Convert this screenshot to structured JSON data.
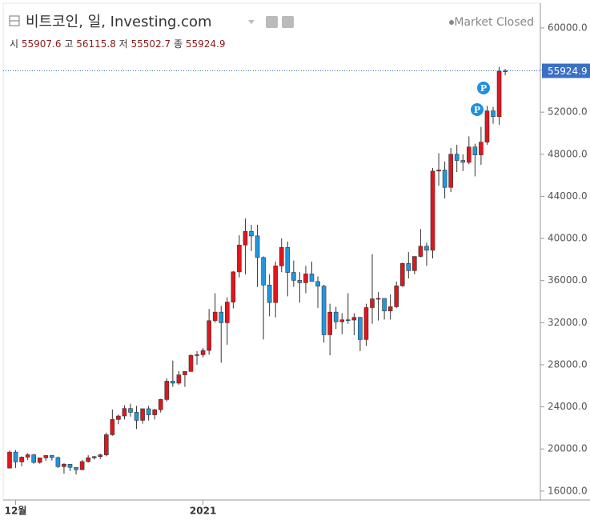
{
  "header": {
    "title": "비트코인, 일, Investing.com",
    "status": "Market Closed",
    "ohlc_labels": [
      "시",
      "고",
      "저",
      "종"
    ]
  },
  "chart_data": {
    "type": "candlestick",
    "categories": [
      null,
      "12월",
      null,
      null,
      null,
      null,
      null,
      null,
      null,
      null,
      null,
      null,
      null,
      null,
      null,
      null,
      null,
      null,
      null,
      null,
      null,
      null,
      null,
      null,
      null,
      null,
      null,
      null,
      null,
      null,
      null,
      null,
      "2021",
      null,
      null,
      null,
      null,
      null,
      null,
      null,
      null,
      null,
      null,
      null,
      null,
      null,
      null,
      null,
      null,
      null,
      null,
      null,
      null,
      null,
      null,
      null,
      null,
      null,
      null,
      null,
      null,
      null,
      null,
      null,
      null,
      null,
      null,
      null,
      null,
      null,
      null,
      null,
      null,
      null,
      null,
      null,
      null,
      null,
      null,
      null,
      null,
      null,
      null
    ],
    "open": [
      18180,
      19700,
      18770,
      19220,
      19445,
      18720,
      19155,
      19375,
      19180,
      18320,
      18550,
      18250,
      18030,
      18800,
      19160,
      19270,
      19440,
      21350,
      22800,
      23130,
      23840,
      23480,
      22720,
      23820,
      23240,
      23730,
      24700,
      26440,
      26250,
      27040,
      27360,
      28880,
      28950,
      29360,
      32190,
      33000,
      31990,
      33950,
      36820,
      39370,
      40670,
      40240,
      38190,
      35570,
      33910,
      37390,
      39150,
      36770,
      36020,
      35790,
      36630,
      35910,
      35470,
      30850,
      33000,
      32080,
      32270,
      32250,
      32500,
      30400,
      33430,
      34260,
      34300,
      33110,
      33510,
      35500,
      37620,
      36940,
      38290,
      39260,
      38880,
      46400,
      46500,
      44850,
      48000,
      47410,
      47230,
      48690,
      47940,
      49150,
      52120,
      51580,
      55907.6
    ],
    "high": [
      19850,
      19900,
      19300,
      19600,
      19530,
      19180,
      19420,
      19400,
      19280,
      18650,
      18560,
      18270,
      18950,
      19400,
      19330,
      19550,
      21550,
      23750,
      23270,
      24150,
      24300,
      24100,
      23820,
      24100,
      23800,
      24770,
      26700,
      28400,
      27400,
      27370,
      28990,
      29300,
      29600,
      33300,
      34800,
      33600,
      34400,
      36900,
      40300,
      41900,
      41300,
      41300,
      38300,
      36600,
      37800,
      40000,
      39700,
      37900,
      36800,
      37400,
      37800,
      36400,
      35600,
      33800,
      33500,
      32900,
      34800,
      32900,
      32550,
      33800,
      38500,
      34900,
      34300,
      34700,
      35900,
      37700,
      38700,
      38300,
      40900,
      39600,
      46700,
      48100,
      47300,
      48600,
      48900,
      48000,
      49700,
      49000,
      50600,
      52600,
      52500,
      56300,
      56115.8
    ],
    "low": [
      18180,
      18200,
      18350,
      18950,
      18600,
      18600,
      18880,
      18900,
      18200,
      17650,
      17900,
      17580,
      18000,
      18700,
      19000,
      19060,
      19300,
      21250,
      22350,
      22800,
      23070,
      21900,
      22400,
      22700,
      22800,
      23460,
      24500,
      25900,
      26100,
      25900,
      27340,
      28000,
      28700,
      28950,
      32000,
      28200,
      29900,
      33350,
      36300,
      36600,
      38800,
      35400,
      30400,
      32600,
      32500,
      36800,
      34500,
      35400,
      33900,
      34800,
      35900,
      33400,
      30100,
      28900,
      31400,
      30900,
      31900,
      30800,
      29300,
      29800,
      31900,
      32200,
      32300,
      32300,
      33400,
      35400,
      36200,
      36600,
      38200,
      37400,
      38100,
      45000,
      43800,
      44400,
      46300,
      46400,
      47050,
      45900,
      47000,
      48900,
      50900,
      50800,
      55502.7
    ],
    "close": [
      19700,
      18770,
      19220,
      19445,
      18720,
      19155,
      19375,
      19180,
      18320,
      18550,
      18250,
      18030,
      18800,
      19160,
      19270,
      19440,
      21350,
      22800,
      23130,
      23840,
      23480,
      22720,
      23820,
      23240,
      23730,
      24700,
      26440,
      26250,
      27040,
      27360,
      28880,
      28950,
      29360,
      32190,
      33000,
      31990,
      33950,
      36820,
      39370,
      40670,
      40240,
      38190,
      35570,
      33910,
      37390,
      39150,
      36770,
      36020,
      35790,
      36630,
      35910,
      35470,
      30850,
      33000,
      32080,
      32270,
      32250,
      32500,
      30400,
      33430,
      34260,
      34300,
      33110,
      33510,
      35500,
      37620,
      36940,
      38290,
      39260,
      38880,
      46400,
      46500,
      44850,
      48000,
      47410,
      47230,
      48690,
      47940,
      49150,
      52120,
      51580,
      55890,
      55924.9
    ],
    "up_color": "#e0161c",
    "down_color": "#2196e0",
    "ylim": [
      15150,
      62350
    ],
    "yticks": [
      {
        "value": 16000,
        "label": "16000.0"
      },
      {
        "value": 20000,
        "label": "20000.0"
      },
      {
        "value": 24000,
        "label": "24000.0"
      },
      {
        "value": 28000,
        "label": "28000.0"
      },
      {
        "value": 32000,
        "label": "32000.0"
      },
      {
        "value": 36000,
        "label": "36000.0"
      },
      {
        "value": 40000,
        "label": "40000.0"
      },
      {
        "value": 44000,
        "label": "44000.0"
      },
      {
        "value": 48000,
        "label": "48000.0"
      },
      {
        "value": 52000,
        "label": "52000.0"
      },
      {
        "value": 56000,
        "label": "56000.0"
      },
      {
        "value": 60000,
        "label": "60000.0"
      }
    ]
  }
}
